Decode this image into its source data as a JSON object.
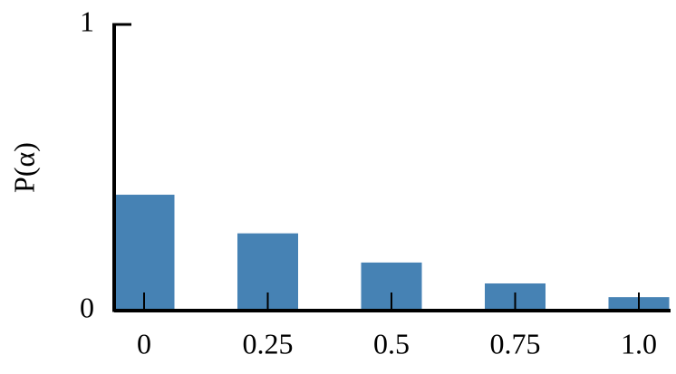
{
  "chart_data": {
    "type": "bar",
    "ylabel": "P(α)",
    "categories": [
      "0",
      "0.25",
      "0.5",
      "0.75",
      "1.0"
    ],
    "values": [
      0.405,
      0.27,
      0.168,
      0.095,
      0.047
    ],
    "color": "#4682b4",
    "ylim": [
      0,
      1
    ],
    "yticks": [
      0,
      1
    ]
  }
}
